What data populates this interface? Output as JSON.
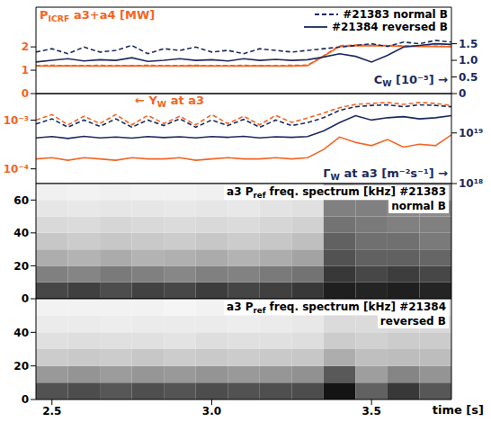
{
  "chart_data": [
    {
      "type": "line",
      "ylabel": [
        {
          "text": "P"
        },
        {
          "text": "ICRF",
          "sub": true
        },
        {
          "text": " a3+a4 [MW]"
        }
      ],
      "y2label": [
        {
          "text": "C"
        },
        {
          "text": "W",
          "sub": true
        },
        {
          "text": " [10⁻⁵] →"
        }
      ],
      "xlim": [
        2.45,
        3.75
      ],
      "ylim": [
        0,
        3.7
      ],
      "yticks": [
        0,
        1,
        2
      ],
      "y2lim": [
        0,
        2.6
      ],
      "y2ticks": [
        0,
        0.5,
        {
          "value": 1,
          "label": "1.0"
        },
        1.5
      ],
      "legend": "upper right",
      "x": [
        2.45,
        2.5,
        2.55,
        2.6,
        2.65,
        2.7,
        2.75,
        2.8,
        2.85,
        2.9,
        2.95,
        3,
        3.05,
        3.1,
        3.15,
        3.2,
        3.25,
        3.3,
        3.35,
        3.4,
        3.45,
        3.5,
        3.55,
        3.6,
        3.65,
        3.7,
        3.75
      ],
      "series": [
        {
          "name": "#21383 normal B",
          "color": "#f26522",
          "line_style": "dashed",
          "values": [
            1.2,
            1.21,
            1.2,
            1.2,
            1.21,
            1.2,
            1.2,
            1.21,
            1.2,
            1.2,
            1.21,
            1.2,
            1.2,
            1.21,
            1.2,
            1.2,
            1.21,
            1.22,
            1.62,
            2.05,
            2.08,
            2.07,
            2.06,
            2.05,
            2.04,
            2.03,
            2.02
          ]
        },
        {
          "name": "#21384 reversed B",
          "color": "#f26522",
          "line_style": "solid",
          "values": [
            1.18,
            1.18,
            1.19,
            1.18,
            1.18,
            1.18,
            1.19,
            1.18,
            1.18,
            1.18,
            1.19,
            1.18,
            1.18,
            1.18,
            1.19,
            1.18,
            1.18,
            1.2,
            1.6,
            2.02,
            2.04,
            2.05,
            2.04,
            2.03,
            2.02,
            2.02,
            2.01
          ]
        },
        {
          "name": "#21383 normal B",
          "color": "#1c2a5e",
          "line_style": "dashed",
          "axis": "y2",
          "values": [
            1.25,
            1.35,
            1.2,
            1.4,
            1.25,
            1.3,
            1.45,
            1.2,
            1.35,
            1.3,
            1.4,
            1.25,
            1.3,
            1.2,
            1.35,
            1.3,
            1.25,
            1.3,
            1.35,
            1.4,
            1.45,
            1.5,
            1.42,
            1.55,
            1.5,
            1.6,
            1.55
          ]
        },
        {
          "name": "#21384 reversed B",
          "color": "#1c2a5e",
          "line_style": "solid",
          "axis": "y2",
          "values": [
            0.95,
            1.0,
            1.05,
            0.98,
            1.02,
            1.0,
            1.08,
            0.97,
            1.0,
            1.05,
            1.0,
            1.02,
            0.98,
            1.05,
            1.0,
            1.03,
            1.0,
            1.02,
            1.1,
            1.2,
            1.12,
            0.95,
            1.15,
            1.4,
            1.45,
            1.5,
            1.48
          ]
        }
      ]
    },
    {
      "type": "line",
      "log": "y",
      "ylabel": [
        {
          "text": "← Y"
        },
        {
          "text": "W",
          "sub": true
        },
        {
          "text": " at a3"
        }
      ],
      "y2label": [
        {
          "text": "Γ"
        },
        {
          "text": "W",
          "sub": true
        },
        {
          "text": " at a3 [m⁻²s⁻¹] →"
        }
      ],
      "xlim": [
        2.45,
        3.75
      ],
      "ylim": [
        5e-05,
        0.0035
      ],
      "yticks": [
        {
          "value": 0.0001,
          "label": "10⁻⁴"
        },
        {
          "value": 0.001,
          "label": "10⁻³"
        }
      ],
      "y2lim": [
        1e+18,
        6e+19
      ],
      "y2ticks": [
        {
          "value": 1e+18,
          "label": "10¹⁸"
        },
        {
          "value": 1e+19,
          "label": "10¹⁹"
        }
      ],
      "x": [
        2.45,
        2.5,
        2.55,
        2.6,
        2.65,
        2.7,
        2.75,
        2.8,
        2.85,
        2.9,
        2.95,
        3,
        3.05,
        3.1,
        3.15,
        3.2,
        3.25,
        3.3,
        3.35,
        3.4,
        3.45,
        3.5,
        3.55,
        3.6,
        3.65,
        3.7,
        3.75
      ],
      "series": [
        {
          "name": "#21383 normal B",
          "color": "#f26522",
          "line_style": "dashed",
          "values": [
            0.001,
            0.0013,
            0.0008,
            0.0012,
            0.00085,
            0.0013,
            0.0008,
            0.00125,
            0.00085,
            0.0012,
            0.0008,
            0.0013,
            0.00085,
            0.0012,
            0.0008,
            0.00125,
            0.0009,
            0.0011,
            0.0014,
            0.0018,
            0.0021,
            0.0022,
            0.0023,
            0.0021,
            0.0023,
            0.0022,
            0.002
          ]
        },
        {
          "name": "#21384 reversed B",
          "color": "#f26522",
          "line_style": "solid",
          "values": [
            0.00016,
            0.00017,
            0.00015,
            0.00017,
            0.00016,
            0.00015,
            0.00017,
            0.00016,
            0.00016,
            0.00017,
            0.00015,
            0.00016,
            0.00017,
            0.00016,
            0.00016,
            0.00017,
            0.00016,
            0.00017,
            0.00025,
            0.00045,
            0.00035,
            0.0003,
            0.0004,
            0.00028,
            0.00032,
            0.0003,
            0.0005
          ]
        },
        {
          "name": "#21383 normal B",
          "color": "#1c2a5e",
          "line_style": "dashed",
          "axis": "y2",
          "values": [
            1.5e+19,
            1.9e+19,
            1.3e+19,
            1.8e+19,
            1.35e+19,
            1.9e+19,
            1.3e+19,
            1.8e+19,
            1.4e+19,
            1.9e+19,
            1.3e+19,
            1.8e+19,
            1.4e+19,
            1.85e+19,
            1.3e+19,
            1.8e+19,
            1.4e+19,
            1.6e+19,
            2e+19,
            2.8e+19,
            3.3e+19,
            3.5e+19,
            3.6e+19,
            3.3e+19,
            3.6e+19,
            3.5e+19,
            3.3e+19
          ]
        },
        {
          "name": "#21384 reversed B",
          "color": "#1c2a5e",
          "line_style": "solid",
          "axis": "y2",
          "values": [
            8e+18,
            8.5e+18,
            7.8e+18,
            8.6e+18,
            8e+18,
            8.3e+18,
            7.9e+18,
            8.5e+18,
            8.1e+18,
            8.4e+18,
            8e+18,
            8.5e+18,
            8.2e+18,
            8.6e+18,
            8e+18,
            8.4e+18,
            8.2e+18,
            8.5e+18,
            1.1e+19,
            1.6e+19,
            2.2e+19,
            1.8e+19,
            2e+19,
            2.1e+19,
            1.9e+19,
            2e+19,
            2.2e+19
          ]
        }
      ]
    },
    {
      "type": "heatmap",
      "title": [
        [
          {
            "text": "a3 P"
          },
          {
            "text": "ref",
            "sub": true
          },
          {
            "text": " freq. spectrum [kHz] #21383"
          }
        ],
        [
          {
            "text": "normal B"
          }
        ]
      ],
      "xlim": [
        2.45,
        3.75
      ],
      "ylim": [
        0,
        70
      ],
      "yticks": [
        0,
        20,
        40,
        60
      ],
      "color": "#000000",
      "x_bins": [
        2.45,
        2.55,
        2.65,
        2.75,
        2.85,
        2.95,
        3.05,
        3.15,
        3.25,
        3.35,
        3.45,
        3.55,
        3.65,
        3.75
      ],
      "y_bins": [
        0,
        10,
        20,
        30,
        40,
        50,
        60,
        70
      ],
      "cells": [
        [
          0.72,
          0.5,
          0.32,
          0.22,
          0.15,
          0.1,
          0.06
        ],
        [
          0.75,
          0.48,
          0.3,
          0.2,
          0.14,
          0.09,
          0.05
        ],
        [
          0.7,
          0.52,
          0.33,
          0.22,
          0.16,
          0.1,
          0.06
        ],
        [
          0.74,
          0.5,
          0.3,
          0.21,
          0.15,
          0.1,
          0.05
        ],
        [
          0.72,
          0.47,
          0.31,
          0.2,
          0.14,
          0.09,
          0.05
        ],
        [
          0.76,
          0.5,
          0.33,
          0.22,
          0.15,
          0.1,
          0.06
        ],
        [
          0.73,
          0.49,
          0.3,
          0.2,
          0.14,
          0.09,
          0.05
        ],
        [
          0.75,
          0.52,
          0.32,
          0.22,
          0.16,
          0.11,
          0.06
        ],
        [
          0.78,
          0.55,
          0.36,
          0.25,
          0.18,
          0.12,
          0.07
        ],
        [
          0.88,
          0.78,
          0.68,
          0.62,
          0.55,
          0.5,
          0.35
        ],
        [
          0.86,
          0.72,
          0.62,
          0.56,
          0.52,
          0.5,
          0.32
        ],
        [
          0.88,
          0.76,
          0.62,
          0.56,
          0.5,
          0.46,
          0.3
        ],
        [
          0.86,
          0.72,
          0.6,
          0.52,
          0.5,
          0.45,
          0.3
        ]
      ]
    },
    {
      "type": "heatmap",
      "title": [
        [
          {
            "text": "a3 P"
          },
          {
            "text": "ref",
            "sub": true
          },
          {
            "text": " freq. spectrum [kHz] #21384"
          }
        ],
        [
          {
            "text": "reversed B"
          }
        ]
      ],
      "xlabel": "time [s]",
      "xlim": [
        2.45,
        3.75
      ],
      "xticks": [
        2.5,
        {
          "value": 3,
          "label": "3.0"
        },
        3.5
      ],
      "ylim": [
        0,
        60
      ],
      "yticks": [
        0,
        20,
        40
      ],
      "color": "#000000",
      "x_bins": [
        2.45,
        2.55,
        2.65,
        2.75,
        2.85,
        2.95,
        3.05,
        3.15,
        3.25,
        3.35,
        3.45,
        3.55,
        3.65,
        3.75
      ],
      "y_bins": [
        0,
        10,
        20,
        30,
        40,
        50,
        60
      ],
      "cells": [
        [
          0.68,
          0.4,
          0.2,
          0.12,
          0.08,
          0.05
        ],
        [
          0.7,
          0.42,
          0.21,
          0.13,
          0.08,
          0.05
        ],
        [
          0.66,
          0.39,
          0.2,
          0.12,
          0.07,
          0.05
        ],
        [
          0.69,
          0.41,
          0.22,
          0.12,
          0.08,
          0.05
        ],
        [
          0.67,
          0.4,
          0.2,
          0.11,
          0.08,
          0.04
        ],
        [
          0.7,
          0.42,
          0.21,
          0.13,
          0.08,
          0.05
        ],
        [
          0.68,
          0.4,
          0.2,
          0.12,
          0.07,
          0.05
        ],
        [
          0.69,
          0.41,
          0.21,
          0.12,
          0.08,
          0.05
        ],
        [
          0.7,
          0.43,
          0.22,
          0.13,
          0.09,
          0.05
        ],
        [
          0.92,
          0.65,
          0.32,
          0.2,
          0.14,
          0.1
        ],
        [
          0.62,
          0.38,
          0.25,
          0.18,
          0.14,
          0.1
        ],
        [
          0.78,
          0.48,
          0.26,
          0.2,
          0.15,
          0.1
        ],
        [
          0.66,
          0.42,
          0.26,
          0.2,
          0.15,
          0.1
        ]
      ]
    }
  ]
}
